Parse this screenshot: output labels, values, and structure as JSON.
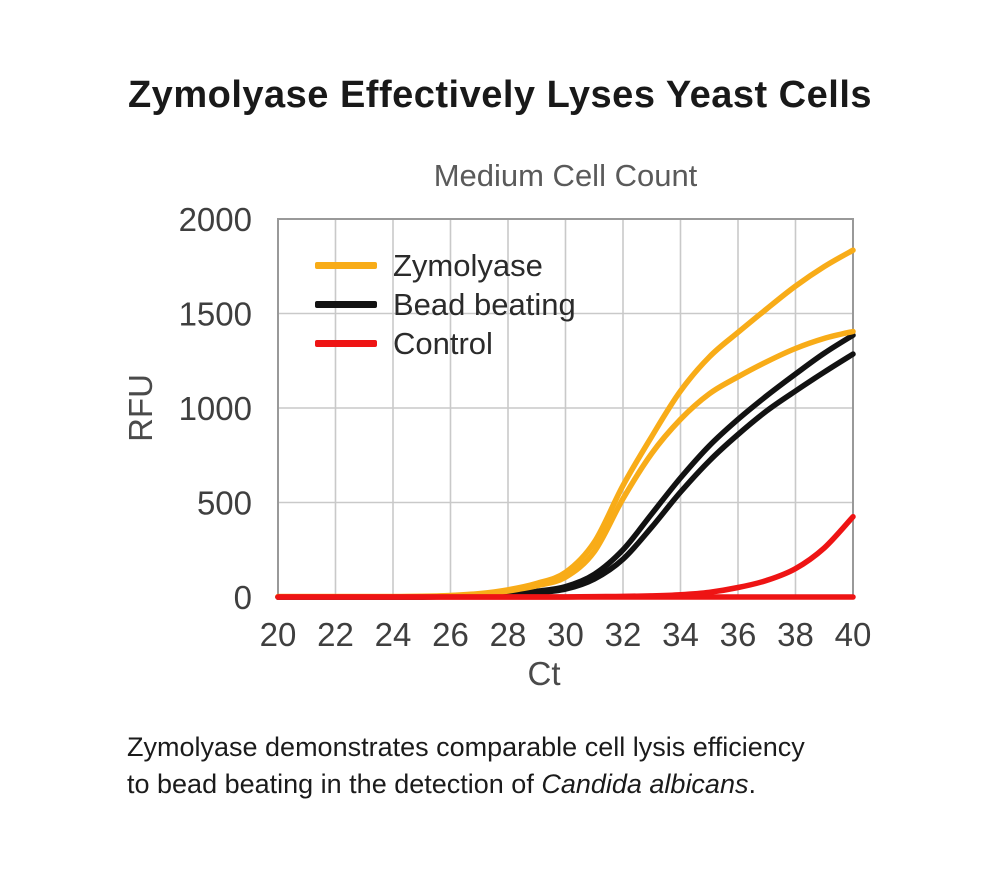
{
  "page": {
    "title": "Zymolyase Effectively Lyses Yeast Cells",
    "caption": {
      "line1": "Zymolyase demonstrates comparable cell lysis efficiency",
      "line2_normal": "to bead beating in the detection of ",
      "line2_italic": "Candida albicans",
      "line2_end": "."
    }
  },
  "chart": {
    "subtitle": "Medium Cell Count",
    "legend": [
      {
        "label": "Zymolyase",
        "color": "#F8AC18"
      },
      {
        "label": "Bead beating",
        "color": "#121212"
      },
      {
        "label": "Control",
        "color": "#EE1414"
      }
    ],
    "colors": {
      "grid": "#c9c9c9",
      "border": "#999999",
      "tick_text": "#3f3f3f",
      "axis_text": "#4a4a4a"
    }
  },
  "chart_data": {
    "type": "line",
    "title": "Medium Cell Count",
    "xlabel": "Ct",
    "ylabel": "RFU",
    "xlim": [
      20,
      40
    ],
    "ylim": [
      0,
      2000
    ],
    "x_ticks": [
      20,
      22,
      24,
      26,
      28,
      30,
      32,
      34,
      36,
      38,
      40
    ],
    "y_ticks": [
      0,
      500,
      1000,
      1500,
      2000
    ],
    "grid": true,
    "legend_position": "upper left",
    "x": [
      20,
      21,
      22,
      23,
      24,
      25,
      26,
      27,
      28,
      29,
      30,
      31,
      32,
      33,
      34,
      35,
      36,
      37,
      38,
      39,
      40
    ],
    "series": [
      {
        "name": "Bead beating replicate 1",
        "group": "Bead beating",
        "color": "#121212",
        "values": [
          0,
          0,
          0,
          0,
          0,
          0,
          3,
          7,
          15,
          30,
          55,
          120,
          250,
          440,
          630,
          800,
          940,
          1065,
          1180,
          1290,
          1385
        ]
      },
      {
        "name": "Bead beating replicate 2",
        "group": "Bead beating",
        "color": "#121212",
        "values": [
          0,
          0,
          0,
          0,
          0,
          0,
          2,
          5,
          11,
          22,
          42,
          95,
          200,
          370,
          555,
          720,
          860,
          985,
          1090,
          1190,
          1285
        ]
      },
      {
        "name": "Zymolyase replicate 1",
        "group": "Zymolyase",
        "color": "#F8AC18",
        "values": [
          2,
          2,
          2,
          2,
          2,
          4,
          8,
          18,
          38,
          72,
          130,
          290,
          590,
          850,
          1090,
          1270,
          1400,
          1525,
          1645,
          1748,
          1835
        ]
      },
      {
        "name": "Zymolyase replicate 2",
        "group": "Zymolyase",
        "color": "#F8AC18",
        "values": [
          2,
          2,
          2,
          2,
          2,
          3,
          7,
          15,
          32,
          60,
          105,
          240,
          520,
          760,
          940,
          1075,
          1165,
          1245,
          1315,
          1368,
          1405
        ]
      },
      {
        "name": "Control replicate 1",
        "group": "Control",
        "color": "#EE1414",
        "values": [
          0,
          0,
          0,
          0,
          0,
          0,
          0,
          0,
          0,
          0,
          0,
          2,
          3,
          6,
          12,
          25,
          50,
          88,
          150,
          260,
          425
        ]
      },
      {
        "name": "Control replicate 2",
        "group": "Control",
        "color": "#EE1414",
        "values": [
          0,
          0,
          0,
          0,
          0,
          0,
          0,
          0,
          0,
          0,
          0,
          0,
          0,
          0,
          0,
          0,
          0,
          0,
          0,
          0,
          0
        ]
      }
    ]
  }
}
